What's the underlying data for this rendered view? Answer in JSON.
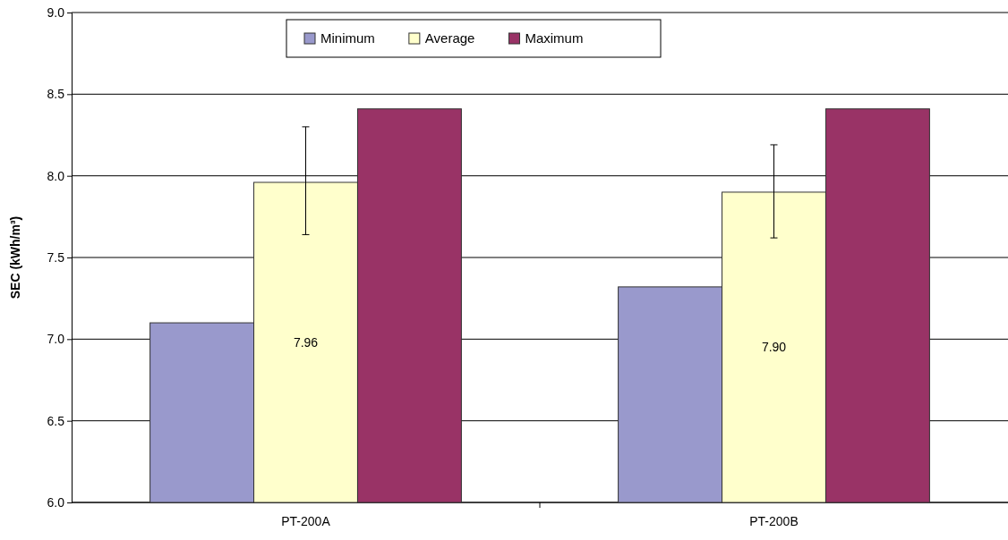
{
  "chart_data": {
    "type": "bar",
    "ylabel": "SEC (kWh/m³)",
    "categories": [
      "PT-200A",
      "PT-200B"
    ],
    "series": [
      {
        "name": "Minimum",
        "color": "#9999cc",
        "values": [
          7.1,
          7.32
        ]
      },
      {
        "name": "Average",
        "color": "#ffffcc",
        "values": [
          7.96,
          7.9
        ],
        "errors": [
          [
            7.64,
            8.3
          ],
          [
            7.62,
            8.19
          ]
        ],
        "value_labels": [
          "7.96",
          "7.90"
        ]
      },
      {
        "name": "Maximum",
        "color": "#993366",
        "values": [
          8.41,
          8.41
        ]
      }
    ],
    "ylim": [
      6.0,
      9.0
    ],
    "yticks": [
      {
        "value": 6,
        "label": "6.0"
      },
      {
        "value": 6.5,
        "label": "6.5"
      },
      {
        "value": 7,
        "label": "7.0"
      },
      {
        "value": 7.5,
        "label": "7.5"
      },
      {
        "value": 8,
        "label": "8.0"
      },
      {
        "value": 8.5,
        "label": "8.5"
      },
      {
        "value": 9,
        "label": "9.0"
      }
    ],
    "grid": "y",
    "legend": "top"
  }
}
